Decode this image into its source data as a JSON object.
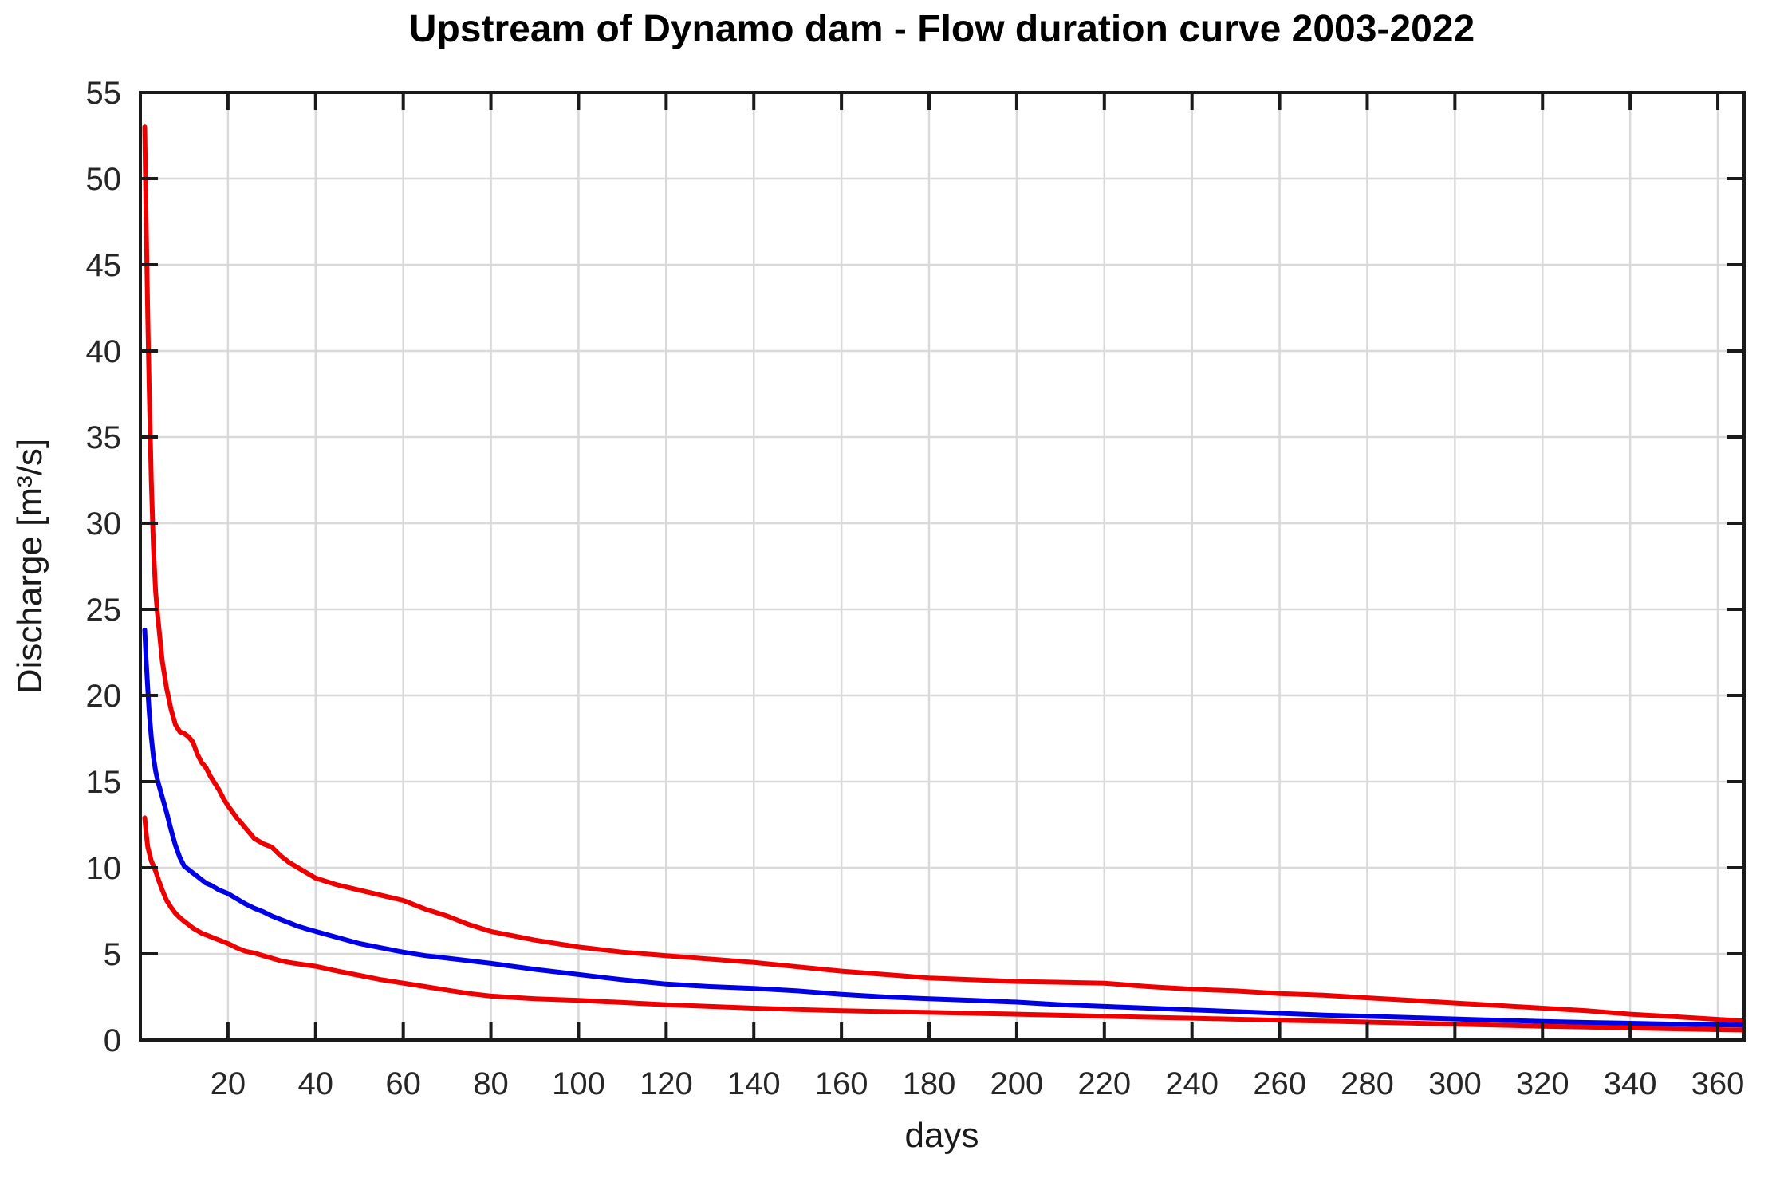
{
  "chart_data": {
    "type": "line",
    "title": "Upstream of Dynamo dam - Flow duration curve 2003-2022",
    "xlabel": "days",
    "ylabel": "Discharge [m³/s]",
    "xlim": [
      0,
      366
    ],
    "ylim": [
      0,
      55
    ],
    "x_ticks": [
      20,
      40,
      60,
      80,
      100,
      120,
      140,
      160,
      180,
      200,
      220,
      240,
      260,
      280,
      300,
      320,
      340,
      360
    ],
    "y_ticks": [
      0,
      5,
      10,
      15,
      20,
      25,
      30,
      35,
      40,
      45,
      50,
      55
    ],
    "grid": true,
    "legend": "none",
    "colors": {
      "axis": "#1a1a1a",
      "grid": "#d9d9d9",
      "background": "#ffffff",
      "envelope": "#ee0000",
      "central": "#0000e6"
    },
    "x": [
      1,
      1.3,
      1.7,
      2,
      2.5,
      3,
      3.5,
      4,
      5,
      6,
      7,
      8,
      9,
      10,
      11,
      12,
      13,
      14,
      15,
      16,
      17,
      18,
      19,
      20,
      22,
      24,
      26,
      28,
      30,
      32,
      34,
      36,
      38,
      40,
      45,
      50,
      55,
      60,
      65,
      70,
      75,
      80,
      90,
      100,
      110,
      120,
      130,
      140,
      150,
      160,
      170,
      180,
      190,
      200,
      210,
      220,
      230,
      240,
      250,
      260,
      270,
      280,
      290,
      300,
      310,
      320,
      330,
      340,
      350,
      360,
      366
    ],
    "series": [
      {
        "name": "upper-envelope",
        "color_key": "envelope",
        "y": [
          53,
          48,
          42,
          38,
          32.5,
          28.5,
          26,
          24.5,
          22,
          20.4,
          19.2,
          18.3,
          17.9,
          17.8,
          17.6,
          17.3,
          16.6,
          16.1,
          15.8,
          15.3,
          14.9,
          14.5,
          14,
          13.6,
          12.9,
          12.3,
          11.7,
          11.4,
          11.2,
          10.7,
          10.3,
          10,
          9.7,
          9.4,
          9,
          8.7,
          8.4,
          8.1,
          7.6,
          7.2,
          6.7,
          6.3,
          5.8,
          5.4,
          5.1,
          4.9,
          4.7,
          4.5,
          4.25,
          4,
          3.8,
          3.6,
          3.5,
          3.4,
          3.35,
          3.3,
          3.1,
          2.95,
          2.85,
          2.7,
          2.6,
          2.45,
          2.3,
          2.15,
          2,
          1.85,
          1.7,
          1.5,
          1.35,
          1.2,
          1.1
        ]
      },
      {
        "name": "central-curve",
        "color_key": "central",
        "y": [
          23.8,
          22.2,
          20.4,
          19.1,
          17.6,
          16.4,
          15.6,
          15,
          14.1,
          13.2,
          12.2,
          11.3,
          10.6,
          10.1,
          9.9,
          9.7,
          9.5,
          9.3,
          9.1,
          9,
          8.85,
          8.7,
          8.6,
          8.5,
          8.2,
          7.9,
          7.65,
          7.45,
          7.2,
          7,
          6.8,
          6.6,
          6.45,
          6.3,
          5.95,
          5.6,
          5.35,
          5.1,
          4.9,
          4.75,
          4.6,
          4.45,
          4.1,
          3.8,
          3.5,
          3.25,
          3.1,
          3,
          2.85,
          2.65,
          2.5,
          2.4,
          2.3,
          2.2,
          2.05,
          1.95,
          1.85,
          1.75,
          1.65,
          1.55,
          1.45,
          1.38,
          1.3,
          1.22,
          1.15,
          1.08,
          1.02,
          0.97,
          0.92,
          0.88,
          0.86
        ]
      },
      {
        "name": "lower-envelope",
        "color_key": "envelope",
        "y": [
          12.9,
          12.1,
          11.2,
          10.9,
          10.4,
          10.1,
          9.8,
          9.4,
          8.7,
          8.1,
          7.7,
          7.35,
          7.1,
          6.9,
          6.7,
          6.5,
          6.35,
          6.2,
          6.1,
          6,
          5.9,
          5.8,
          5.7,
          5.6,
          5.35,
          5.15,
          5.05,
          4.9,
          4.75,
          4.6,
          4.5,
          4.42,
          4.35,
          4.28,
          4,
          3.75,
          3.5,
          3.3,
          3.1,
          2.9,
          2.7,
          2.55,
          2.4,
          2.3,
          2.18,
          2.05,
          1.95,
          1.85,
          1.77,
          1.7,
          1.65,
          1.6,
          1.55,
          1.5,
          1.44,
          1.38,
          1.32,
          1.27,
          1.21,
          1.15,
          1.1,
          1.04,
          0.98,
          0.92,
          0.86,
          0.8,
          0.75,
          0.7,
          0.65,
          0.6,
          0.58
        ]
      }
    ]
  }
}
